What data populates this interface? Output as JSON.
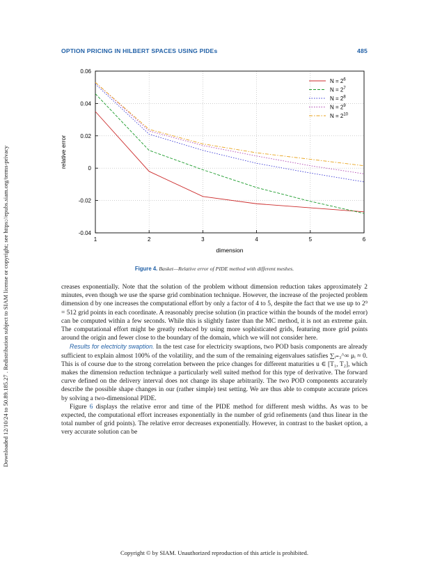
{
  "side_note": "Downloaded 12/10/24 to 50.89.185.27 . Redistribution subject to SIAM license or copyright; see https://epubs.siam.org/terms-privacy",
  "header": {
    "running_title": "OPTION PRICING IN HILBERT SPACES USING PIDEs",
    "page_number": "485"
  },
  "figure": {
    "label": "Figure 4.",
    "caption": "Basket—Relative error of PIDE method with different meshes."
  },
  "chart_data": {
    "type": "line",
    "xlabel": "dimension",
    "ylabel": "relative error",
    "xlim": [
      1,
      6
    ],
    "ylim": [
      -0.04,
      0.06
    ],
    "x": [
      1,
      2,
      3,
      4,
      5,
      6
    ],
    "xticks": [
      "1",
      "2",
      "3",
      "4",
      "5",
      "6"
    ],
    "yticks": [
      "0.06",
      "0.04",
      "0.02",
      "0",
      "-0.02",
      "-0.04"
    ],
    "ytick_values": [
      0.06,
      0.04,
      0.02,
      0,
      -0.02,
      -0.04
    ],
    "grid": true,
    "legend_position": "top-right",
    "series": [
      {
        "name_base": "N = 2",
        "name_exp": "6",
        "color": "#cc2b2b",
        "dash": "",
        "values": [
          0.035,
          -0.002,
          -0.0175,
          -0.022,
          -0.0245,
          -0.027
        ]
      },
      {
        "name_base": "N = 2",
        "name_exp": "7",
        "color": "#1a9a2a",
        "dash": "4,2",
        "values": [
          0.046,
          0.011,
          -0.001,
          -0.012,
          -0.0205,
          -0.028
        ]
      },
      {
        "name_base": "N = 2",
        "name_exp": "8",
        "color": "#3a3ad6",
        "dash": "1.5,2",
        "values": [
          0.052,
          0.021,
          0.011,
          0.003,
          -0.003,
          -0.0085
        ]
      },
      {
        "name_base": "N = 2",
        "name_exp": "9",
        "color": "#b044b0",
        "dash": "1.5,2",
        "values": [
          0.053,
          0.023,
          0.014,
          0.0075,
          0.0015,
          -0.0035
        ]
      },
      {
        "name_base": "N = 2",
        "name_exp": "10",
        "color": "#e8a21a",
        "dash": "5,2,1.5,2",
        "values": [
          0.053,
          0.024,
          0.015,
          0.0095,
          0.0055,
          0.0015
        ]
      }
    ]
  },
  "body": {
    "p1": "creases exponentially. Note that the solution of the problem without dimension reduction takes approximately 2 minutes, even though we use the sparse grid combination technique. However, the increase of the projected problem dimension d by one increases the computational effort by only a factor of 4 to 5, despite the fact that we use up to 2⁹ = 512 grid points in each coordinate. A reasonably precise solution (in practice within the bounds of the model error) can be computed within a few seconds. While this is slightly faster than the MC method, it is not an extreme gain. The computational effort might be greatly reduced by using more sophisticated grids, featuring more grid points around the origin and fewer close to the boundary of the domain, which we will not consider here.",
    "p2_runin": "Results for electricity swaption.",
    "p2": " In the test case for electricity swaptions, two POD basis components are already sufficient to explain almost 100% of the volatility, and the sum of the remaining eigenvalues satisfies ∑ᵢ₌₃^∞ μᵢ ≈ 0. This is of course due to the strong correlation between the price changes for different maturities u ∈ [T₁, T₂], which makes the dimension reduction technique a particularly well suited method for this type of derivative. The forward curve defined on the delivery interval does not change its shape arbitrarily. The two POD components accurately describe the possible shape changes in our (rather simple) test setting. We are thus able to compute accurate prices by solving a two-dimensional PIDE.",
    "p3_start": "Figure ",
    "p3_ref": "6",
    "p3": " displays the relative error and time of the PIDE method for different mesh widths. As was to be expected, the computational effort increases exponentially in the number of grid refinements (and thus linear in the total number of grid points). The relative error decreases exponentially. However, in contrast to the basket option, a very accurate solution can be"
  },
  "footer": "Copyright © by SIAM. Unauthorized reproduction of this article is prohibited."
}
